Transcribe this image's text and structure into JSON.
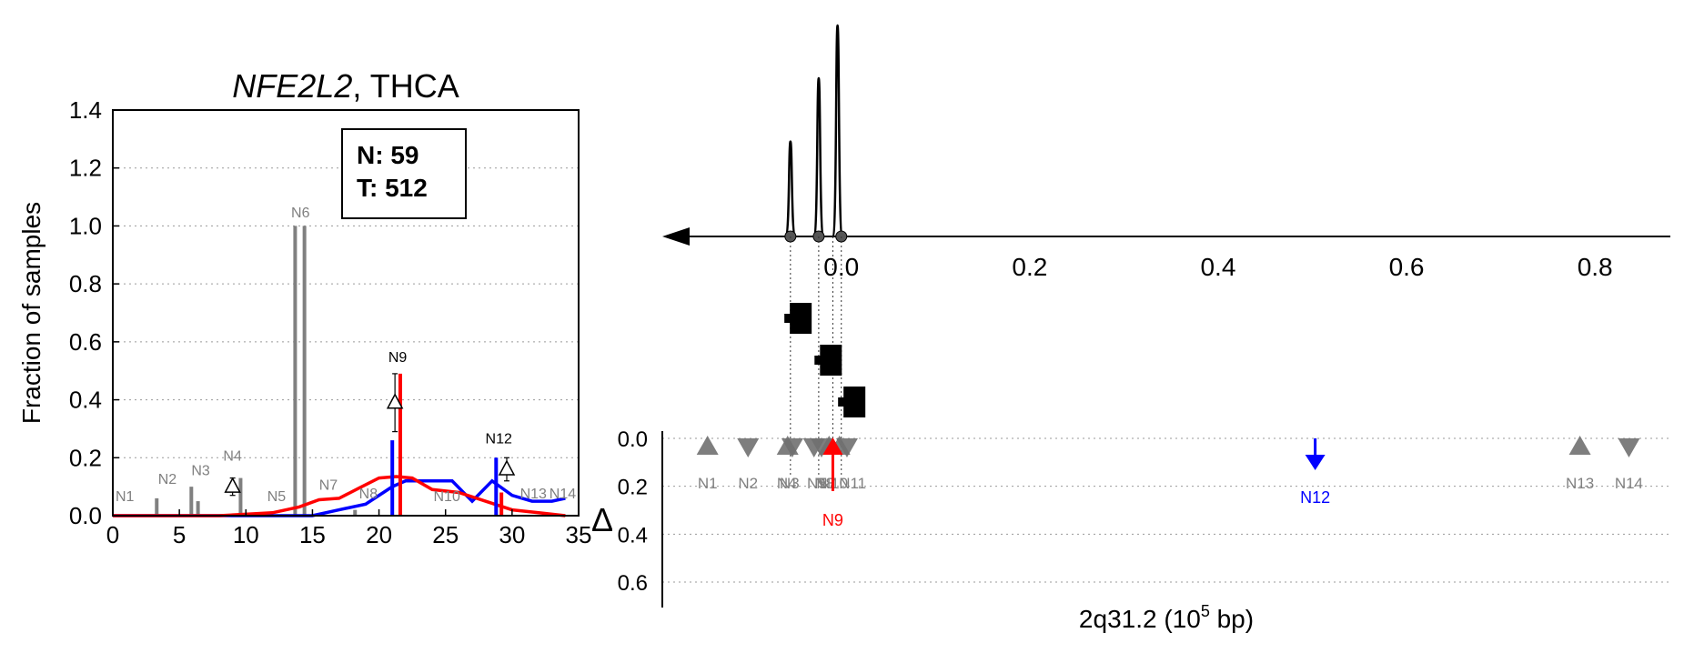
{
  "chart_data": [
    {
      "type": "bar",
      "title_italic": "NFE2L2",
      "title_rest": ", THCA",
      "ylabel": "Fraction of samples",
      "xlim": [
        0,
        35
      ],
      "ylim": [
        0,
        1.4
      ],
      "xticks": [
        0,
        5,
        10,
        15,
        20,
        25,
        30,
        35
      ],
      "yticks": [
        0.0,
        0.2,
        0.4,
        0.6,
        0.8,
        1.0,
        1.2,
        1.4
      ],
      "grid": "horizontal dotted",
      "legend_box": {
        "normal_label": "N: 59",
        "tumor_label": "T: 512"
      },
      "colors": {
        "normal": "#808080",
        "tumor": "#ff0000",
        "tumor_blue": "#0000ff",
        "text": "#000000"
      },
      "grey_bars": [
        {
          "x": 3.3,
          "value": 0.06
        },
        {
          "x": 5.9,
          "value": 0.1
        },
        {
          "x": 6.4,
          "value": 0.05
        },
        {
          "x": 9.6,
          "value": 0.13
        },
        {
          "x": 13.7,
          "value": 1.0
        },
        {
          "x": 14.4,
          "value": 1.0
        },
        {
          "x": 18.2,
          "value": 0.02
        }
      ],
      "red_bar": {
        "x": 21.6,
        "value": 0.49
      },
      "red_bar_small": {
        "x": 29.2,
        "value": 0.08
      },
      "blue_bar": {
        "x": 21.0,
        "value": 0.26
      },
      "blue_bar_small": {
        "x": 28.8,
        "value": 0.2
      },
      "delta_markers": [
        {
          "x": 9.0,
          "value": 0.1,
          "err": 0.03
        },
        {
          "x": 21.2,
          "value": 0.39,
          "err": 0.1
        },
        {
          "x": 29.6,
          "value": 0.16,
          "err": 0.04
        }
      ],
      "red_curve": {
        "x": [
          0,
          4,
          8,
          10,
          12,
          14,
          15.5,
          17,
          18.5,
          20,
          21.3,
          22.5,
          24,
          26,
          28,
          30,
          32,
          34
        ],
        "y": [
          0.0,
          0.0,
          0.0,
          0.005,
          0.01,
          0.03,
          0.055,
          0.06,
          0.095,
          0.13,
          0.135,
          0.13,
          0.09,
          0.08,
          0.05,
          0.02,
          0.01,
          0.0
        ]
      },
      "blue_curve": {
        "x": [
          0,
          10,
          13,
          15,
          17,
          19,
          21,
          22,
          24,
          25.5,
          27,
          28.5,
          30,
          31.5,
          33,
          34
        ],
        "y": [
          0.0,
          0.0,
          0.0,
          0.0,
          0.02,
          0.04,
          0.1,
          0.12,
          0.12,
          0.12,
          0.05,
          0.12,
          0.07,
          0.05,
          0.05,
          0.06
        ]
      },
      "labels": [
        {
          "text": "N1",
          "x": 0.9,
          "value": 0.05,
          "color": "grey"
        },
        {
          "text": "N2",
          "x": 4.1,
          "value": 0.11,
          "color": "grey"
        },
        {
          "text": "N3",
          "x": 6.6,
          "value": 0.14,
          "color": "grey"
        },
        {
          "text": "N4",
          "x": 9.0,
          "value": 0.19,
          "color": "grey"
        },
        {
          "text": "N5",
          "x": 12.3,
          "value": 0.05,
          "color": "grey"
        },
        {
          "text": "N6",
          "x": 14.1,
          "value": 1.03,
          "color": "grey"
        },
        {
          "text": "N7",
          "x": 16.2,
          "value": 0.09,
          "color": "grey"
        },
        {
          "text": "N8",
          "x": 19.2,
          "value": 0.06,
          "color": "grey"
        },
        {
          "text": "N9",
          "x": 21.4,
          "value": 0.53,
          "color": "black"
        },
        {
          "text": "N10",
          "x": 25.1,
          "value": 0.05,
          "color": "grey"
        },
        {
          "text": "N12",
          "x": 29.0,
          "value": 0.25,
          "color": "black"
        },
        {
          "text": "N13",
          "x": 31.6,
          "value": 0.06,
          "color": "grey"
        },
        {
          "text": "N14",
          "x": 33.8,
          "value": 0.06,
          "color": "grey"
        }
      ]
    },
    {
      "type": "line",
      "xticks": [
        "0.0",
        "0.2",
        "0.4",
        "0.6",
        "0.8"
      ],
      "xlim": [
        -0.19,
        0.88
      ],
      "peaks": [
        {
          "x": -0.054,
          "height": 0.45
        },
        {
          "x": -0.024,
          "height": 0.75
        },
        {
          "x": -0.004,
          "height": 1.0
        }
      ],
      "axis_dots": [
        -0.054,
        -0.024,
        0.0
      ],
      "colors": {
        "line": "#000000"
      }
    },
    {
      "type": "scatter",
      "xlabel_prefix": "2q31.2 (10",
      "xlabel_exponent": "5",
      "xlabel_suffix": " bp)",
      "ylabel": "Δ",
      "yticks": [
        "0.0",
        "0.2",
        "0.4",
        "0.6"
      ],
      "ylim": [
        0.0,
        0.7
      ],
      "xlim": [
        -0.19,
        0.88
      ],
      "boxes": [
        {
          "x": -0.045,
          "level": 1
        },
        {
          "x": -0.013,
          "level": 2
        },
        {
          "x": 0.012,
          "level": 3
        }
      ],
      "vlines": [
        -0.054,
        -0.024,
        -0.009,
        0.0
      ],
      "markers": [
        {
          "label": "N1",
          "x": -0.142,
          "shape": "up"
        },
        {
          "label": "N2",
          "x": -0.099,
          "shape": "down"
        },
        {
          "label": "N3",
          "x": -0.057,
          "shape": "up"
        },
        {
          "label": "N4",
          "x": -0.052,
          "shape": "down"
        },
        {
          "label": "N5",
          "x": -0.029,
          "shape": "down"
        },
        {
          "label": "N7",
          "x": -0.021,
          "shape": "down"
        },
        {
          "label": "N8",
          "x": -0.013,
          "shape": "up"
        },
        {
          "label": "N10",
          "x": -0.002,
          "shape": "up"
        },
        {
          "label": "N11",
          "x": 0.006,
          "shape": "down"
        },
        {
          "label": "N13",
          "x": 0.784,
          "shape": "up"
        },
        {
          "label": "N14",
          "x": 0.836,
          "shape": "down"
        }
      ],
      "marker_label_text": [
        {
          "text": "N1",
          "x": -0.142
        },
        {
          "text": "N2",
          "x": -0.099
        },
        {
          "text": "N3",
          "x": -0.055
        },
        {
          "text": "N4",
          "x": -0.058
        },
        {
          "text": "N5",
          "x": -0.026
        },
        {
          "text": "N7",
          "x": -0.016
        },
        {
          "text": "N8",
          "x": -0.018
        },
        {
          "text": "N10",
          "x": -0.008
        },
        {
          "text": "N11",
          "x": 0.012
        },
        {
          "text": "N13",
          "x": 0.784
        },
        {
          "text": "N14",
          "x": 0.836
        }
      ],
      "blue_arrow": {
        "label": "N12",
        "x": 0.503,
        "value": 0.09
      },
      "red_arrow": {
        "label": "N9",
        "x": -0.009,
        "value": 0.24
      },
      "colors": {
        "marker": "#707070",
        "blue": "#0000ff",
        "red": "#ff0000",
        "grid": "#999999"
      }
    }
  ]
}
